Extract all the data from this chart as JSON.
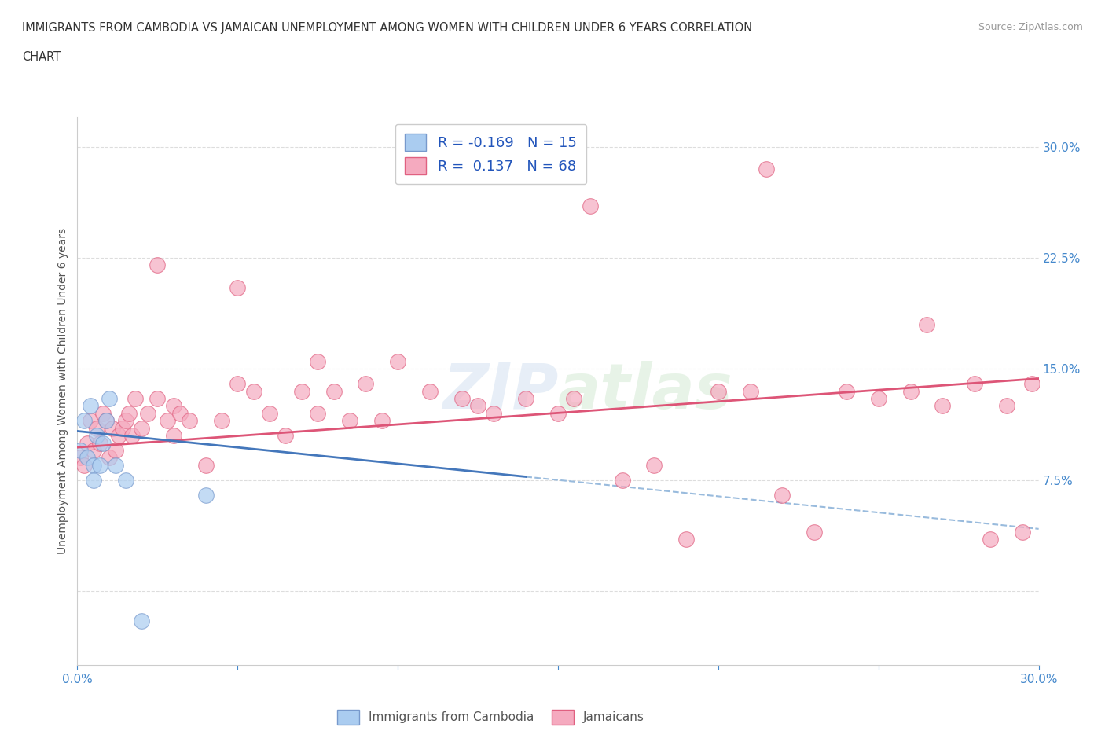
{
  "title_line1": "IMMIGRANTS FROM CAMBODIA VS JAMAICAN UNEMPLOYMENT AMONG WOMEN WITH CHILDREN UNDER 6 YEARS CORRELATION",
  "title_line2": "CHART",
  "source": "Source: ZipAtlas.com",
  "ylabel": "Unemployment Among Women with Children Under 6 years",
  "watermark": "ZIPatlas",
  "xmin": 0.0,
  "xmax": 0.3,
  "ymin": -0.05,
  "ymax": 0.32,
  "xticks": [
    0.0,
    0.05,
    0.1,
    0.15,
    0.2,
    0.25,
    0.3
  ],
  "xticklabels": [
    "0.0%",
    "",
    "",
    "",
    "",
    "",
    "30.0%"
  ],
  "yticks": [
    0.0,
    0.075,
    0.15,
    0.225,
    0.3
  ],
  "yticklabels": [
    "",
    "7.5%",
    "15.0%",
    "22.5%",
    "30.0%"
  ],
  "color_cambodia": "#aaccf0",
  "color_cambodia_edge": "#7799cc",
  "color_jamaica": "#f5aabf",
  "color_jamaica_edge": "#e06080",
  "color_line_cambodia": "#4477bb",
  "color_line_jamaica": "#dd5577",
  "color_dashed_cambodia": "#99bbdd",
  "background_color": "#ffffff",
  "grid_color": "#dddddd",
  "tick_color": "#4488cc",
  "R_cambodia": -0.169,
  "N_cambodia": 15,
  "R_jamaica": 0.137,
  "N_jamaica": 68,
  "cambodia_scatter_x": [
    0.001,
    0.002,
    0.003,
    0.004,
    0.005,
    0.005,
    0.006,
    0.007,
    0.008,
    0.009,
    0.01,
    0.012,
    0.015,
    0.02,
    0.04
  ],
  "cambodia_scatter_y": [
    0.095,
    0.115,
    0.09,
    0.125,
    0.085,
    0.075,
    0.105,
    0.085,
    0.1,
    0.115,
    0.13,
    0.085,
    0.075,
    -0.02,
    0.065
  ],
  "jamaica_scatter_x": [
    0.001,
    0.002,
    0.003,
    0.004,
    0.005,
    0.006,
    0.007,
    0.008,
    0.009,
    0.01,
    0.011,
    0.012,
    0.013,
    0.014,
    0.015,
    0.016,
    0.017,
    0.018,
    0.02,
    0.022,
    0.025,
    0.028,
    0.03,
    0.03,
    0.032,
    0.035,
    0.04,
    0.045,
    0.05,
    0.055,
    0.06,
    0.065,
    0.07,
    0.075,
    0.08,
    0.085,
    0.09,
    0.095,
    0.1,
    0.11,
    0.12,
    0.13,
    0.14,
    0.15,
    0.155,
    0.16,
    0.17,
    0.18,
    0.19,
    0.2,
    0.21,
    0.215,
    0.22,
    0.23,
    0.24,
    0.25,
    0.26,
    0.265,
    0.27,
    0.28,
    0.285,
    0.29,
    0.295,
    0.298,
    0.025,
    0.05,
    0.075,
    0.125
  ],
  "jamaica_scatter_y": [
    0.09,
    0.085,
    0.1,
    0.115,
    0.095,
    0.11,
    0.1,
    0.12,
    0.115,
    0.09,
    0.11,
    0.095,
    0.105,
    0.11,
    0.115,
    0.12,
    0.105,
    0.13,
    0.11,
    0.12,
    0.13,
    0.115,
    0.125,
    0.105,
    0.12,
    0.115,
    0.085,
    0.115,
    0.14,
    0.135,
    0.12,
    0.105,
    0.135,
    0.12,
    0.135,
    0.115,
    0.14,
    0.115,
    0.155,
    0.135,
    0.13,
    0.12,
    0.13,
    0.12,
    0.13,
    0.26,
    0.075,
    0.085,
    0.035,
    0.135,
    0.135,
    0.285,
    0.065,
    0.04,
    0.135,
    0.13,
    0.135,
    0.18,
    0.125,
    0.14,
    0.035,
    0.125,
    0.04,
    0.14,
    0.22,
    0.205,
    0.155,
    0.125
  ],
  "jam_intercept": 0.097,
  "jam_slope": 0.155,
  "cam_intercept": 0.108,
  "cam_slope": -0.22
}
